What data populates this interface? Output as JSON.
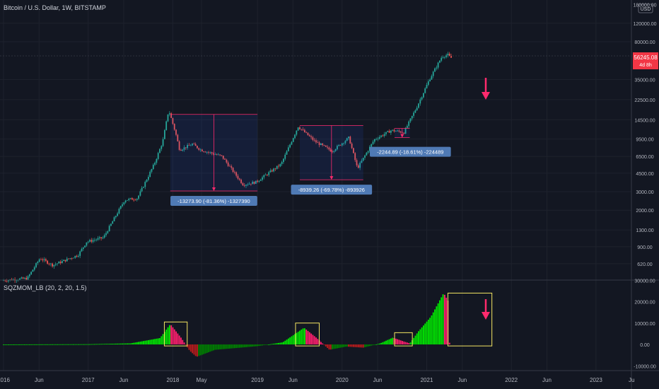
{
  "header": {
    "symbol_title": "Bitcoin / U.S. Dollar, 1W, BITSTAMP",
    "currency_badge": "USD",
    "indicator_title": "SQZMOM_LB (20, 2, 20, 1.5)"
  },
  "price_badge": {
    "value": "56245.08",
    "countdown": "4d 8h",
    "color": "#f23645"
  },
  "colors": {
    "up_candle": "#26a69a",
    "down_candle": "#ef5350",
    "hist_bright_green": "#00e600",
    "hist_dark_green": "#008000",
    "hist_pink": "#ff1f6e",
    "hist_dark_red": "#b71c1c",
    "box_outline": "#f5e663",
    "range_outline": "#ff2a6d",
    "label_bg": "#4f7ab5",
    "arrow": "#ff2a6d"
  },
  "chart_data": [
    {
      "type": "candlestick",
      "title": "Bitcoin / U.S. Dollar, 1W, BITSTAMP",
      "y_scale": "log",
      "yticks": [
        "180000.00",
        "120000.00",
        "80000.00",
        "35000.00",
        "22500.00",
        "14500.00",
        "9500.00",
        "6500.00",
        "4500.00",
        "3000.00",
        "2000.00",
        "1300.00",
        "900.00",
        "620.00"
      ],
      "xticks": [
        "2016",
        "Jun",
        "2017",
        "Jun",
        "2018",
        "May",
        "2019",
        "Jun",
        "2020",
        "Jun",
        "2021",
        "Jun",
        "2022",
        "Jun",
        "2023",
        "Ju"
      ],
      "anchors": [
        {
          "t": 2016.0,
          "p": 430
        },
        {
          "t": 2016.3,
          "p": 450
        },
        {
          "t": 2016.45,
          "p": 700
        },
        {
          "t": 2016.6,
          "p": 600
        },
        {
          "t": 2016.9,
          "p": 750
        },
        {
          "t": 2017.0,
          "p": 1000
        },
        {
          "t": 2017.2,
          "p": 1100
        },
        {
          "t": 2017.45,
          "p": 2500
        },
        {
          "t": 2017.6,
          "p": 2600
        },
        {
          "t": 2017.8,
          "p": 5500
        },
        {
          "t": 2017.9,
          "p": 9000
        },
        {
          "t": 2017.97,
          "p": 18000
        },
        {
          "t": 2018.05,
          "p": 11000
        },
        {
          "t": 2018.1,
          "p": 7500
        },
        {
          "t": 2018.25,
          "p": 8500
        },
        {
          "t": 2018.35,
          "p": 7500
        },
        {
          "t": 2018.6,
          "p": 6500
        },
        {
          "t": 2018.85,
          "p": 3500
        },
        {
          "t": 2019.0,
          "p": 3700
        },
        {
          "t": 2019.3,
          "p": 5500
        },
        {
          "t": 2019.5,
          "p": 12500
        },
        {
          "t": 2019.7,
          "p": 9000
        },
        {
          "t": 2019.9,
          "p": 7300
        },
        {
          "t": 2020.1,
          "p": 9800
        },
        {
          "t": 2020.2,
          "p": 5000
        },
        {
          "t": 2020.4,
          "p": 9400
        },
        {
          "t": 2020.6,
          "p": 11500
        },
        {
          "t": 2020.75,
          "p": 11000
        },
        {
          "t": 2020.9,
          "p": 19000
        },
        {
          "t": 2021.05,
          "p": 35000
        },
        {
          "t": 2021.2,
          "p": 58000
        },
        {
          "t": 2021.27,
          "p": 60000
        },
        {
          "t": 2021.3,
          "p": 56245
        }
      ],
      "ranges": [
        {
          "label": "-13273.90 (-81.36%) -1327390",
          "t_start": 2017.97,
          "t_end": 2019.0,
          "p_high": 16300,
          "p_low": 3050
        },
        {
          "label": "-8939.26 (-69.78%) -893926",
          "t_start": 2019.5,
          "t_end": 2020.25,
          "p_high": 12800,
          "p_low": 3900
        },
        {
          "label": "-2244.89 (-18.61%) -224489",
          "t_start": 2020.62,
          "t_end": 2020.8,
          "p_high": 12000,
          "p_low": 9800
        }
      ]
    },
    {
      "type": "bar",
      "title": "SQZMOM_LB (20, 2, 20, 1.5)",
      "yticks": [
        "30000.00",
        "20000.00",
        "10000.00",
        "0.00",
        "-10000.00"
      ],
      "ylim": [
        -12000,
        30000
      ],
      "highlight_boxes": [
        {
          "t_start": 2017.9,
          "t_end": 2018.17,
          "v_top": 10500
        },
        {
          "t_start": 2019.45,
          "t_end": 2019.73,
          "v_top": 10000
        },
        {
          "t_start": 2020.62,
          "t_end": 2020.83,
          "v_top": 5500
        },
        {
          "t_start": 2021.25,
          "t_end": 2021.77,
          "v_top": 24000
        }
      ],
      "anchors": [
        {
          "t": 2016.0,
          "v": 0
        },
        {
          "t": 2017.0,
          "v": 100
        },
        {
          "t": 2017.5,
          "v": 500
        },
        {
          "t": 2017.85,
          "v": 3000
        },
        {
          "t": 2017.97,
          "v": 9500
        },
        {
          "t": 2018.1,
          "v": 3000
        },
        {
          "t": 2018.2,
          "v": -3000
        },
        {
          "t": 2018.28,
          "v": -5800
        },
        {
          "t": 2018.5,
          "v": -2500
        },
        {
          "t": 2018.8,
          "v": -1500
        },
        {
          "t": 2019.0,
          "v": -800
        },
        {
          "t": 2019.3,
          "v": 1000
        },
        {
          "t": 2019.55,
          "v": 7800
        },
        {
          "t": 2019.7,
          "v": 3000
        },
        {
          "t": 2019.85,
          "v": -2500
        },
        {
          "t": 2020.05,
          "v": -1000
        },
        {
          "t": 2020.25,
          "v": -1500
        },
        {
          "t": 2020.45,
          "v": 500
        },
        {
          "t": 2020.6,
          "v": 3200
        },
        {
          "t": 2020.72,
          "v": 1500
        },
        {
          "t": 2020.8,
          "v": 500
        },
        {
          "t": 2020.9,
          "v": 6000
        },
        {
          "t": 2021.05,
          "v": 13000
        },
        {
          "t": 2021.2,
          "v": 24000
        },
        {
          "t": 2021.25,
          "v": 20500
        },
        {
          "t": 2021.27,
          "v": 0
        }
      ]
    }
  ]
}
